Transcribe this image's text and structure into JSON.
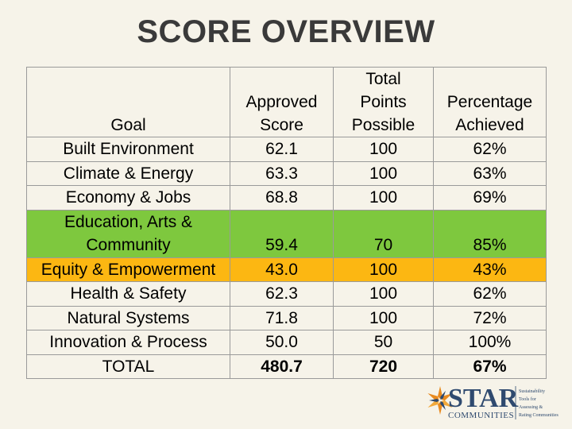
{
  "title": "SCORE OVERVIEW",
  "headers": {
    "goal": "Goal",
    "approved": [
      "Approved",
      "Score"
    ],
    "total": [
      "Total",
      "Points",
      "Possible"
    ],
    "percentage": [
      "Percentage",
      "Achieved"
    ]
  },
  "rows": [
    {
      "goal": "Built Environment",
      "score": "62.1",
      "possible": "100",
      "pct": "62%",
      "highlight": ""
    },
    {
      "goal": "Climate & Energy",
      "score": "63.3",
      "possible": "100",
      "pct": "63%",
      "highlight": ""
    },
    {
      "goal": "Economy & Jobs",
      "score": "68.8",
      "possible": "100",
      "pct": "69%",
      "highlight": ""
    },
    {
      "goal_lines": [
        "Education, Arts &",
        "Community"
      ],
      "score": "59.4",
      "possible": "70",
      "pct": "85%",
      "highlight": "#7ec83e"
    },
    {
      "goal": "Equity & Empowerment",
      "score": "43.0",
      "possible": "100",
      "pct": "43%",
      "highlight": "#fcb712"
    },
    {
      "goal": "Health & Safety",
      "score": "62.3",
      "possible": "100",
      "pct": "62%",
      "highlight": ""
    },
    {
      "goal": "Natural Systems",
      "score": "71.8",
      "possible": "100",
      "pct": "72%",
      "highlight": ""
    },
    {
      "goal": "Innovation & Process",
      "score": "50.0",
      "possible": "50",
      "pct": "100%",
      "highlight": ""
    }
  ],
  "total": {
    "goal": "TOTAL",
    "score": "480.7",
    "possible": "720",
    "pct": "67%"
  },
  "logo": {
    "name": "STAR",
    "sub": "COMMUNITIES",
    "tagline": [
      "Sustainability",
      "Tools for",
      "Assessing &",
      "Rating Communities"
    ],
    "colors": {
      "navy": "#2f4a6f",
      "orange": "#e88a1f"
    }
  }
}
